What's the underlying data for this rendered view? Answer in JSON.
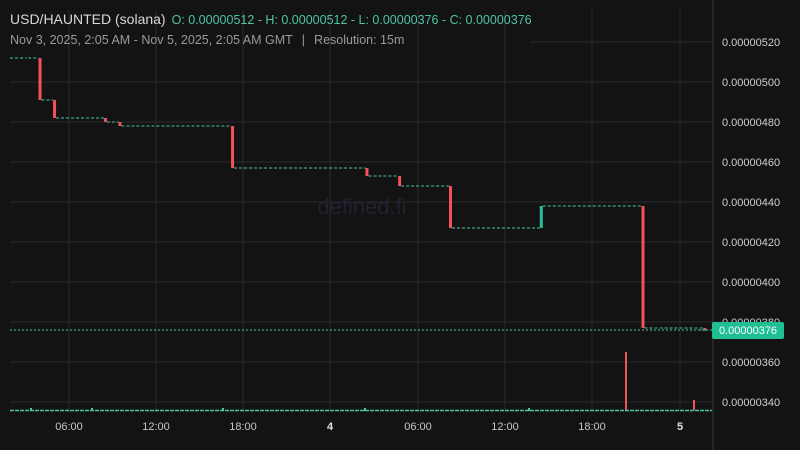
{
  "header": {
    "symbol": "USD/HAUNTED (solana)",
    "ohlc": "O: 0.00000512 - H: 0.00000512 - L: 0.00000376 - C: 0.00000376",
    "range": "Nov 3, 2025, 2:05 AM - Nov 5, 2025, 2:05 AM GMT",
    "separator": "|",
    "resolution": "Resolution: 15m"
  },
  "watermark": "defined.fi",
  "colors": {
    "background": "#131313",
    "grid": "#2b2b2b",
    "up": "#22c39a",
    "down": "#f0535a",
    "price_line": "#4cc4a4",
    "price_tag": "#1fbf93"
  },
  "chart_data": {
    "type": "candlestick",
    "x_ticks": [
      "06:00",
      "12:00",
      "18:00",
      "4",
      "06:00",
      "12:00",
      "18:00",
      "5"
    ],
    "x_ticks_bold": [
      false,
      false,
      false,
      true,
      false,
      false,
      false,
      true
    ],
    "y_ticks": [
      "0.00000520",
      "0.00000500",
      "0.00000480",
      "0.00000460",
      "0.00000440",
      "0.00000420",
      "0.00000400",
      "0.00000380",
      "0.00000360",
      "0.00000340"
    ],
    "ylim": [
      3.3e-06,
      5.3e-06
    ],
    "last_price": 3.76e-06,
    "last_price_label": "0.00000376",
    "grid": true,
    "steps": [
      {
        "time": "Nov 3 02:05",
        "price": 5.12e-06
      },
      {
        "time": "Nov 3 03:00",
        "price": 4.91e-06
      },
      {
        "time": "Nov 3 04:00",
        "price": 4.82e-06
      },
      {
        "time": "Nov 3 07:30",
        "price": 4.8e-06
      },
      {
        "time": "Nov 3 08:30",
        "price": 4.78e-06
      },
      {
        "time": "Nov 3 16:15",
        "price": 4.57e-06
      },
      {
        "time": "Nov 4 01:30",
        "price": 4.53e-06
      },
      {
        "time": "Nov 4 03:45",
        "price": 4.48e-06
      },
      {
        "time": "Nov 4 07:15",
        "price": 4.27e-06
      },
      {
        "time": "Nov 4 13:30",
        "price": 4.38e-06
      },
      {
        "time": "Nov 4 20:30",
        "price": 3.77e-06
      },
      {
        "time": "Nov 5 00:45",
        "price": 3.76e-06
      }
    ]
  }
}
